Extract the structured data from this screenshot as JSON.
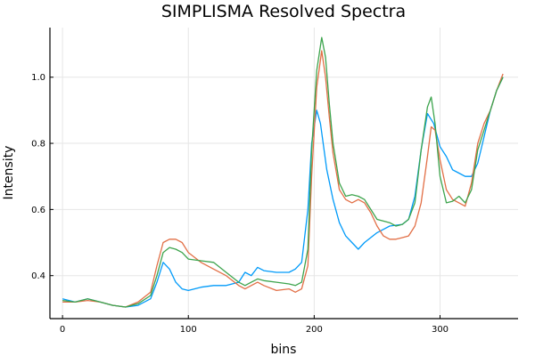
{
  "chart_data": {
    "type": "line",
    "title": "SIMPLISMA Resolved Spectra",
    "xlabel": "bins",
    "ylabel": "Intensity",
    "xlim": [
      -10,
      362
    ],
    "ylim": [
      0.27,
      1.15
    ],
    "xticks": [
      0,
      100,
      200,
      300
    ],
    "yticks": [
      0.4,
      0.6,
      0.8,
      1.0
    ],
    "xtick_labels": [
      "0",
      "100",
      "200",
      "300"
    ],
    "ytick_labels": [
      "0.4",
      "0.6",
      "0.8",
      "1.0"
    ],
    "grid": true,
    "legend": "none",
    "series": [
      {
        "color": "#009af9",
        "x": [
          0,
          10,
          20,
          30,
          40,
          50,
          60,
          70,
          75,
          80,
          85,
          90,
          95,
          100,
          110,
          120,
          130,
          140,
          145,
          150,
          155,
          160,
          170,
          180,
          185,
          190,
          195,
          198,
          202,
          205,
          210,
          215,
          220,
          225,
          230,
          235,
          240,
          250,
          260,
          270,
          275,
          280,
          285,
          290,
          295,
          300,
          305,
          310,
          315,
          320,
          325,
          330,
          335,
          340,
          345,
          350
        ],
        "y": [
          0.33,
          0.32,
          0.33,
          0.32,
          0.31,
          0.305,
          0.31,
          0.33,
          0.38,
          0.44,
          0.42,
          0.38,
          0.36,
          0.355,
          0.365,
          0.37,
          0.37,
          0.38,
          0.41,
          0.4,
          0.425,
          0.415,
          0.41,
          0.41,
          0.42,
          0.44,
          0.6,
          0.8,
          0.9,
          0.86,
          0.72,
          0.63,
          0.56,
          0.52,
          0.5,
          0.48,
          0.5,
          0.53,
          0.55,
          0.555,
          0.57,
          0.64,
          0.78,
          0.89,
          0.86,
          0.79,
          0.76,
          0.72,
          0.71,
          0.7,
          0.7,
          0.74,
          0.82,
          0.9,
          0.96,
          1.0
        ]
      },
      {
        "color": "#e26f46",
        "x": [
          0,
          10,
          20,
          30,
          40,
          50,
          60,
          70,
          75,
          80,
          85,
          90,
          95,
          100,
          110,
          120,
          130,
          140,
          145,
          150,
          155,
          160,
          170,
          180,
          185,
          190,
          195,
          198,
          202,
          206,
          209,
          212,
          215,
          220,
          225,
          230,
          235,
          240,
          245,
          250,
          255,
          260,
          265,
          270,
          275,
          280,
          285,
          290,
          293,
          296,
          300,
          305,
          310,
          315,
          320,
          325,
          330,
          335,
          340,
          345,
          350
        ],
        "y": [
          0.32,
          0.32,
          0.325,
          0.32,
          0.31,
          0.305,
          0.32,
          0.35,
          0.43,
          0.5,
          0.51,
          0.51,
          0.5,
          0.47,
          0.44,
          0.42,
          0.4,
          0.37,
          0.36,
          0.37,
          0.38,
          0.37,
          0.355,
          0.36,
          0.35,
          0.36,
          0.43,
          0.7,
          0.97,
          1.08,
          1.0,
          0.88,
          0.77,
          0.66,
          0.63,
          0.62,
          0.63,
          0.62,
          0.59,
          0.55,
          0.52,
          0.51,
          0.51,
          0.515,
          0.52,
          0.55,
          0.62,
          0.76,
          0.85,
          0.84,
          0.75,
          0.66,
          0.63,
          0.62,
          0.61,
          0.68,
          0.8,
          0.86,
          0.9,
          0.96,
          1.01
        ]
      },
      {
        "color": "#3da44d",
        "x": [
          0,
          10,
          20,
          30,
          40,
          50,
          60,
          70,
          75,
          80,
          85,
          90,
          95,
          100,
          110,
          120,
          130,
          140,
          145,
          150,
          155,
          160,
          170,
          180,
          185,
          190,
          195,
          198,
          202,
          206,
          209,
          212,
          215,
          220,
          225,
          230,
          235,
          240,
          245,
          250,
          255,
          260,
          265,
          270,
          275,
          280,
          285,
          290,
          293,
          296,
          300,
          305,
          310,
          315,
          320,
          325,
          330,
          335,
          340,
          345,
          350
        ],
        "y": [
          0.325,
          0.32,
          0.33,
          0.32,
          0.31,
          0.305,
          0.315,
          0.34,
          0.4,
          0.47,
          0.485,
          0.48,
          0.47,
          0.45,
          0.445,
          0.44,
          0.41,
          0.38,
          0.37,
          0.38,
          0.39,
          0.385,
          0.38,
          0.375,
          0.37,
          0.38,
          0.48,
          0.78,
          1.02,
          1.12,
          1.06,
          0.92,
          0.8,
          0.68,
          0.64,
          0.645,
          0.64,
          0.63,
          0.6,
          0.57,
          0.565,
          0.56,
          0.55,
          0.555,
          0.57,
          0.62,
          0.78,
          0.91,
          0.94,
          0.86,
          0.7,
          0.62,
          0.625,
          0.64,
          0.62,
          0.66,
          0.78,
          0.84,
          0.9,
          0.96,
          1.0
        ]
      }
    ]
  }
}
